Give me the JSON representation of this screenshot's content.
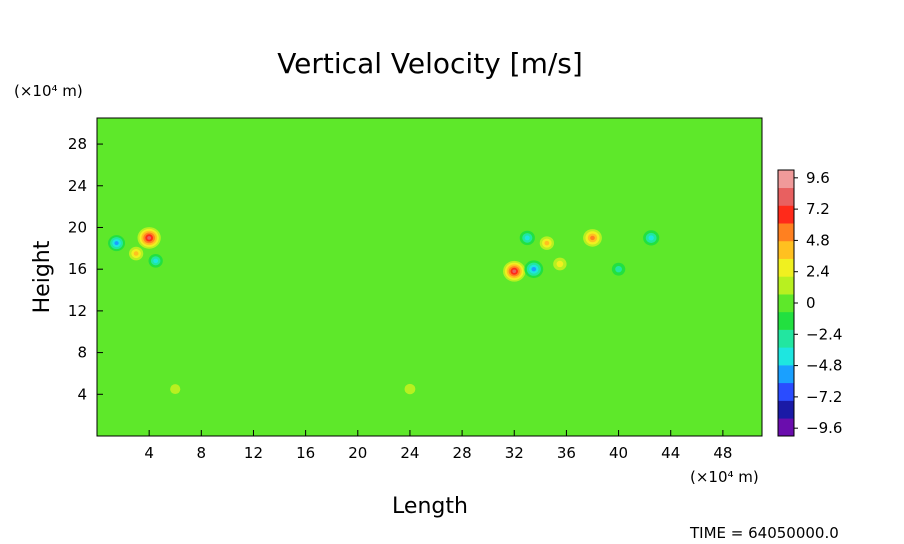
{
  "chart_data": {
    "type": "heatmap",
    "title": "Vertical Velocity [m/s]",
    "xlabel": "Length",
    "ylabel": "Height",
    "x_unit": "(×10⁴ m)",
    "y_unit": "(×10⁴ m)",
    "xlim": [
      0,
      51
    ],
    "ylim": [
      0,
      30.5
    ],
    "x_ticks": [
      4,
      8,
      12,
      16,
      20,
      24,
      28,
      32,
      36,
      40,
      44,
      48
    ],
    "x_tick_labels": [
      "4",
      "8",
      "12",
      "16",
      "20",
      "24",
      "28",
      "32",
      "36",
      "40",
      "44",
      "48"
    ],
    "y_ticks": [
      4,
      8,
      12,
      16,
      20,
      24,
      28
    ],
    "y_tick_labels": [
      "4",
      "8",
      "12",
      "16",
      "20",
      "24",
      "28"
    ],
    "background_value": 0,
    "colorbar": {
      "min": -10.2,
      "max": 10.2,
      "ticks": [
        9.6,
        7.2,
        4.8,
        2.4,
        0,
        -2.4,
        -4.8,
        -7.2,
        -9.6
      ],
      "tick_labels": [
        "9.6",
        "7.2",
        "4.8",
        "2.4",
        "0",
        "−2.4",
        "−4.8",
        "−7.2",
        "−9.6"
      ],
      "colors": [
        "#6a0dad",
        "#1a1aa6",
        "#2a4cff",
        "#1aa0ff",
        "#1ee6e0",
        "#22e6a0",
        "#22e040",
        "#5ee82a",
        "#b8f020",
        "#f0f020",
        "#ffc020",
        "#ff8020",
        "#ff2a1a",
        "#e86060",
        "#f09a9a"
      ]
    },
    "features": [
      {
        "x": 1.5,
        "y": 18.5,
        "value": -5.0
      },
      {
        "x": 3.0,
        "y": 17.5,
        "value": 3.5
      },
      {
        "x": 4.0,
        "y": 19.0,
        "value": 8.5
      },
      {
        "x": 4.5,
        "y": 16.8,
        "value": -3.5
      },
      {
        "x": 32.0,
        "y": 15.8,
        "value": 8.0
      },
      {
        "x": 33.5,
        "y": 16.0,
        "value": -6.0
      },
      {
        "x": 33.0,
        "y": 19.0,
        "value": -4.0
      },
      {
        "x": 34.5,
        "y": 18.5,
        "value": 3.5
      },
      {
        "x": 35.5,
        "y": 16.5,
        "value": 3.0
      },
      {
        "x": 38.0,
        "y": 19.0,
        "value": 6.0
      },
      {
        "x": 40.0,
        "y": 16.0,
        "value": -3.0
      },
      {
        "x": 42.5,
        "y": 19.0,
        "value": -4.5
      },
      {
        "x": 24.0,
        "y": 4.5,
        "value": 1.5
      },
      {
        "x": 6.0,
        "y": 4.5,
        "value": 1.2
      }
    ]
  },
  "footer": {
    "time_label": "TIME = 64050000.0"
  }
}
